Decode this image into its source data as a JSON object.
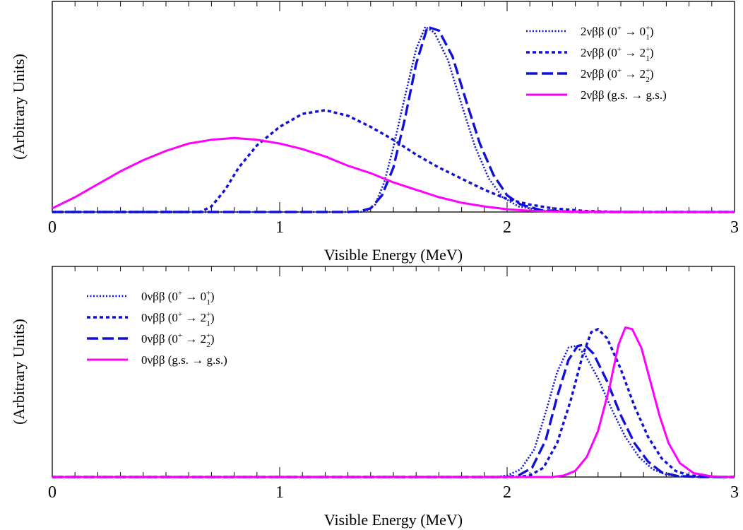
{
  "chart_data": [
    {
      "type": "line",
      "xlabel": "Visible Energy (MeV)",
      "ylabel": "(Arbitrary Units)",
      "xlim": [
        0,
        3
      ],
      "x_ticks": [
        "0",
        "1",
        "2",
        "3"
      ],
      "legend_position": "top-right",
      "series": [
        {
          "name": "2νββ (0+ → 0+1)",
          "legend": {
            "prefix": "2νββ (0",
            "sup1": "+",
            "arrow": " → 0",
            "sup2": "+",
            "sub2": "1",
            "suffix": ")"
          },
          "style": "dotted",
          "color": "#1010d8",
          "points": [
            [
              0,
              0
            ],
            [
              1.35,
              0
            ],
            [
              1.38,
              0.005
            ],
            [
              1.42,
              0.04
            ],
            [
              1.46,
              0.16
            ],
            [
              1.5,
              0.35
            ],
            [
              1.55,
              0.62
            ],
            [
              1.6,
              0.88
            ],
            [
              1.64,
              1.0
            ],
            [
              1.68,
              0.97
            ],
            [
              1.74,
              0.82
            ],
            [
              1.8,
              0.58
            ],
            [
              1.86,
              0.35
            ],
            [
              1.92,
              0.18
            ],
            [
              1.98,
              0.08
            ],
            [
              2.05,
              0.03
            ],
            [
              2.15,
              0.008
            ],
            [
              2.3,
              0
            ],
            [
              3.0,
              0
            ]
          ]
        },
        {
          "name": "2νββ (0+ → 2+1)",
          "legend": {
            "prefix": "2νββ (0",
            "sup1": "+",
            "arrow": " → 2",
            "sup2": "+",
            "sub2": "1",
            "suffix": ")"
          },
          "style": "dashed",
          "color": "#1010d8",
          "points": [
            [
              0,
              0
            ],
            [
              0.65,
              0
            ],
            [
              0.7,
              0.03
            ],
            [
              0.76,
              0.12
            ],
            [
              0.82,
              0.24
            ],
            [
              0.9,
              0.36
            ],
            [
              1.0,
              0.46
            ],
            [
              1.1,
              0.53
            ],
            [
              1.2,
              0.55
            ],
            [
              1.3,
              0.52
            ],
            [
              1.4,
              0.46
            ],
            [
              1.5,
              0.39
            ],
            [
              1.6,
              0.31
            ],
            [
              1.7,
              0.24
            ],
            [
              1.8,
              0.18
            ],
            [
              1.9,
              0.12
            ],
            [
              2.0,
              0.07
            ],
            [
              2.1,
              0.04
            ],
            [
              2.2,
              0.02
            ],
            [
              2.35,
              0.005
            ],
            [
              2.5,
              0
            ],
            [
              3.0,
              0
            ]
          ]
        },
        {
          "name": "2νββ (0+ → 2+2)",
          "legend": {
            "prefix": "2νββ (0",
            "sup1": "+",
            "arrow": " → 2",
            "sup2": "+",
            "sub2": "2",
            "suffix": ")"
          },
          "style": "longdash",
          "color": "#1010d8",
          "points": [
            [
              0,
              0
            ],
            [
              1.3,
              0
            ],
            [
              1.35,
              0.003
            ],
            [
              1.4,
              0.02
            ],
            [
              1.45,
              0.09
            ],
            [
              1.5,
              0.24
            ],
            [
              1.55,
              0.5
            ],
            [
              1.6,
              0.8
            ],
            [
              1.65,
              1.0
            ],
            [
              1.7,
              0.98
            ],
            [
              1.76,
              0.84
            ],
            [
              1.82,
              0.6
            ],
            [
              1.88,
              0.37
            ],
            [
              1.94,
              0.2
            ],
            [
              2.0,
              0.09
            ],
            [
              2.06,
              0.04
            ],
            [
              2.15,
              0.01
            ],
            [
              2.3,
              0
            ],
            [
              3.0,
              0
            ]
          ]
        },
        {
          "name": "2νββ (g.s. → g.s.)",
          "legend": {
            "prefix": "2νββ (g.s. → g.s.)",
            "sup1": "",
            "arrow": "",
            "sup2": "",
            "sub2": "",
            "suffix": ""
          },
          "style": "solid",
          "color": "#ff00ff",
          "points": [
            [
              0,
              0.02
            ],
            [
              0.1,
              0.08
            ],
            [
              0.2,
              0.15
            ],
            [
              0.3,
              0.22
            ],
            [
              0.4,
              0.28
            ],
            [
              0.5,
              0.33
            ],
            [
              0.6,
              0.37
            ],
            [
              0.7,
              0.39
            ],
            [
              0.8,
              0.4
            ],
            [
              0.9,
              0.39
            ],
            [
              1.0,
              0.37
            ],
            [
              1.1,
              0.34
            ],
            [
              1.2,
              0.3
            ],
            [
              1.3,
              0.25
            ],
            [
              1.4,
              0.21
            ],
            [
              1.5,
              0.16
            ],
            [
              1.6,
              0.12
            ],
            [
              1.7,
              0.08
            ],
            [
              1.8,
              0.05
            ],
            [
              1.9,
              0.03
            ],
            [
              2.0,
              0.015
            ],
            [
              2.1,
              0.007
            ],
            [
              2.2,
              0.003
            ],
            [
              2.4,
              0.001
            ],
            [
              2.6,
              0
            ],
            [
              3.0,
              0
            ]
          ]
        }
      ]
    },
    {
      "type": "line",
      "xlabel": "Visible Energy (MeV)",
      "ylabel": "(Arbitrary Units)",
      "xlim": [
        0,
        3
      ],
      "x_ticks": [
        "0",
        "1",
        "2",
        "3"
      ],
      "legend_position": "top-left",
      "series": [
        {
          "name": "0νββ (0+ → 0+1)",
          "legend": {
            "prefix": "0νββ (0",
            "sup1": "+",
            "arrow": " → 0",
            "sup2": "+",
            "sub2": "1",
            "suffix": ")"
          },
          "style": "dotted",
          "color": "#1010d8",
          "points": [
            [
              0,
              0
            ],
            [
              1.95,
              0
            ],
            [
              2.0,
              0.01
            ],
            [
              2.06,
              0.05
            ],
            [
              2.12,
              0.18
            ],
            [
              2.17,
              0.42
            ],
            [
              2.22,
              0.68
            ],
            [
              2.27,
              0.84
            ],
            [
              2.3,
              0.85
            ],
            [
              2.34,
              0.8
            ],
            [
              2.4,
              0.64
            ],
            [
              2.46,
              0.44
            ],
            [
              2.52,
              0.26
            ],
            [
              2.58,
              0.13
            ],
            [
              2.64,
              0.05
            ],
            [
              2.7,
              0.015
            ],
            [
              2.78,
              0.002
            ],
            [
              2.9,
              0
            ],
            [
              3.0,
              0
            ]
          ]
        },
        {
          "name": "0νββ (0+ → 2+1)",
          "legend": {
            "prefix": "0νββ (0",
            "sup1": "+",
            "arrow": " → 2",
            "sup2": "+",
            "sub2": "1",
            "suffix": ")"
          },
          "style": "dashed",
          "color": "#1010d8",
          "points": [
            [
              0,
              0
            ],
            [
              2.05,
              0
            ],
            [
              2.1,
              0.01
            ],
            [
              2.16,
              0.06
            ],
            [
              2.22,
              0.22
            ],
            [
              2.28,
              0.5
            ],
            [
              2.33,
              0.78
            ],
            [
              2.37,
              0.94
            ],
            [
              2.4,
              0.96
            ],
            [
              2.44,
              0.9
            ],
            [
              2.5,
              0.7
            ],
            [
              2.56,
              0.46
            ],
            [
              2.62,
              0.26
            ],
            [
              2.68,
              0.12
            ],
            [
              2.74,
              0.04
            ],
            [
              2.8,
              0.01
            ],
            [
              2.88,
              0.002
            ],
            [
              2.95,
              0
            ],
            [
              3.0,
              0
            ]
          ]
        },
        {
          "name": "0νββ (0+ → 2+2)",
          "legend": {
            "prefix": "0νββ (0",
            "sup1": "+",
            "arrow": " → 2",
            "sup2": "+",
            "sub2": "2",
            "suffix": ")"
          },
          "style": "longdash",
          "color": "#1010d8",
          "points": [
            [
              0,
              0
            ],
            [
              2.0,
              0
            ],
            [
              2.05,
              0.01
            ],
            [
              2.11,
              0.06
            ],
            [
              2.17,
              0.24
            ],
            [
              2.22,
              0.52
            ],
            [
              2.27,
              0.76
            ],
            [
              2.31,
              0.85
            ],
            [
              2.34,
              0.86
            ],
            [
              2.38,
              0.8
            ],
            [
              2.44,
              0.62
            ],
            [
              2.5,
              0.4
            ],
            [
              2.56,
              0.22
            ],
            [
              2.62,
              0.1
            ],
            [
              2.68,
              0.03
            ],
            [
              2.75,
              0.006
            ],
            [
              2.85,
              0
            ],
            [
              3.0,
              0
            ]
          ]
        },
        {
          "name": "0νββ (g.s. → g.s.)",
          "legend": {
            "prefix": "0νββ (g.s. → g.s.)",
            "sup1": "",
            "arrow": "",
            "sup2": "",
            "sub2": "",
            "suffix": ""
          },
          "style": "solid",
          "color": "#ff00ff",
          "points": [
            [
              0,
              0
            ],
            [
              2.2,
              0
            ],
            [
              2.25,
              0.01
            ],
            [
              2.3,
              0.04
            ],
            [
              2.35,
              0.13
            ],
            [
              2.4,
              0.3
            ],
            [
              2.45,
              0.58
            ],
            [
              2.49,
              0.86
            ],
            [
              2.52,
              0.97
            ],
            [
              2.55,
              0.96
            ],
            [
              2.59,
              0.84
            ],
            [
              2.63,
              0.62
            ],
            [
              2.67,
              0.4
            ],
            [
              2.71,
              0.22
            ],
            [
              2.76,
              0.09
            ],
            [
              2.82,
              0.025
            ],
            [
              2.9,
              0.004
            ],
            [
              3.0,
              0
            ]
          ]
        }
      ]
    }
  ]
}
